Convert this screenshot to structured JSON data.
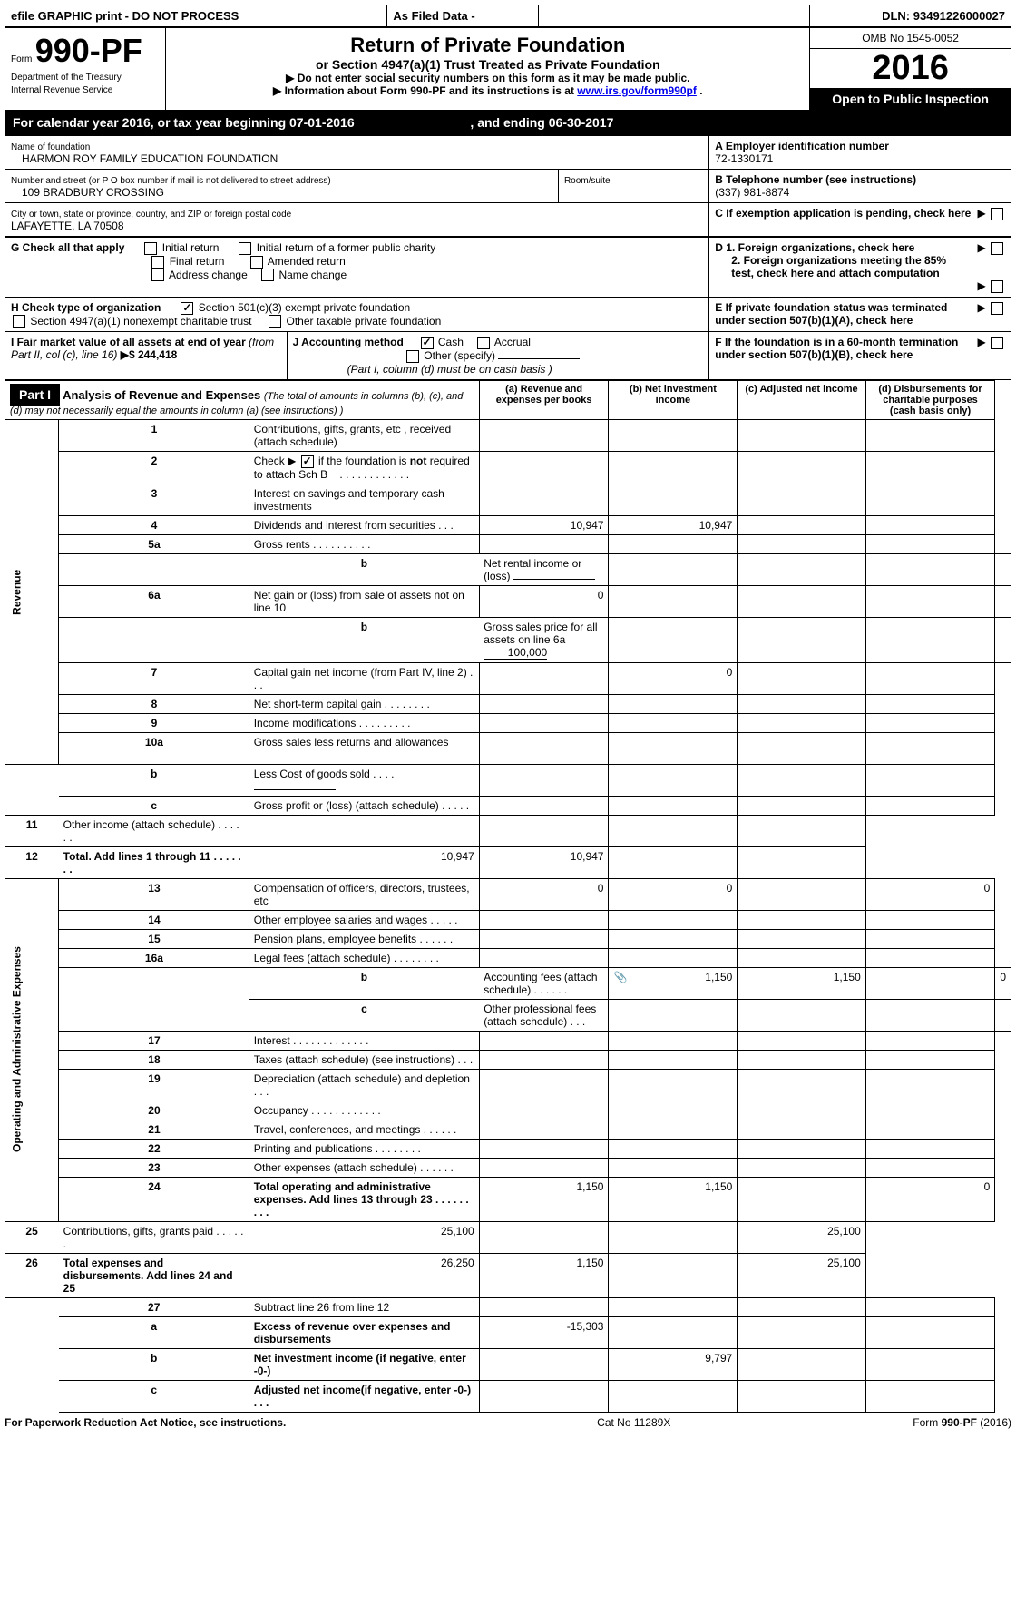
{
  "top_bar": {
    "efile": "efile GRAPHIC print - DO NOT PROCESS",
    "asfiled": "As Filed Data -",
    "dln_label": "DLN:",
    "dln": "93491226000027"
  },
  "form_header": {
    "form_label": "Form",
    "form_number": "990-PF",
    "dept": "Department of the Treasury",
    "irs": "Internal Revenue Service",
    "title": "Return of Private Foundation",
    "subtitle": "or Section 4947(a)(1) Trust Treated as Private Foundation",
    "instr1": "▶ Do not enter social security numbers on this form as it may be made public.",
    "instr2_prefix": "▶ Information about Form 990-PF and its instructions is at ",
    "instr2_link": "www.irs.gov/form990pf",
    "instr2_suffix": ".",
    "omb": "OMB No 1545-0052",
    "year": "2016",
    "open_public": "Open to Public Inspection"
  },
  "calendar": {
    "text1": "For calendar year 2016, or tax year beginning ",
    "begin": "07-01-2016",
    "text2": ", and ending ",
    "end": "06-30-2017"
  },
  "entity": {
    "name_label": "Name of foundation",
    "name": "HARMON ROY FAMILY EDUCATION FOUNDATION",
    "ein_label": "A Employer identification number",
    "ein": "72-1330171",
    "addr_label": "Number and street (or P O  box number if mail is not delivered to street address)",
    "addr": "109 BRADBURY CROSSING",
    "room_label": "Room/suite",
    "phone_label": "B Telephone number (see instructions)",
    "phone": "(337) 981-8874",
    "city_label": "City or town, state or province, country, and ZIP or foreign postal code",
    "city": "LAFAYETTE, LA  70508",
    "c_label": "C If exemption application is pending, check here"
  },
  "checks": {
    "g_label": "G Check all that apply",
    "g1": "Initial return",
    "g2": "Initial return of a former public charity",
    "g3": "Final return",
    "g4": "Amended return",
    "g5": "Address change",
    "g6": "Name change",
    "h_label": "H Check type of organization",
    "h1": "Section 501(c)(3) exempt private foundation",
    "h2": "Section 4947(a)(1) nonexempt charitable trust",
    "h3": "Other taxable private foundation",
    "d1": "D 1. Foreign organizations, check here",
    "d2": "2. Foreign organizations meeting the 85% test, check here and attach computation",
    "e_label": "E  If private foundation status was terminated under section 507(b)(1)(A), check here",
    "i_label": "I Fair market value of all assets at end of year ",
    "i_detail": "(from Part II, col  (c), line 16)",
    "i_value": "▶$  244,418",
    "j_label": "J Accounting method",
    "j_cash": "Cash",
    "j_accrual": "Accrual",
    "j_other": "Other (specify)",
    "j_note": "(Part I, column (d) must be on cash basis )",
    "f_label": "F  If the foundation is in a 60-month termination under section 507(b)(1)(B), check here"
  },
  "part1": {
    "label": "Part I",
    "title": "Analysis of Revenue and Expenses ",
    "title_detail": "(The total of amounts in columns (b), (c), and (d) may not necessarily equal the amounts in column (a) (see instructions) )",
    "col_a": "(a)    Revenue and expenses per books",
    "col_b": "(b)   Net investment income",
    "col_c": "(c)   Adjusted net income",
    "col_d": "(d)   Disbursements for charitable purposes (cash basis only)",
    "rev_label": "Revenue",
    "exp_label": "Operating and Administrative Expenses"
  },
  "rows": [
    {
      "n": "1",
      "label": "Contributions, gifts, grants, etc , received (attach schedule)",
      "a": "",
      "b": "",
      "c": "",
      "d": ""
    },
    {
      "n": "2",
      "label": "Check ▶ ☑ if the foundation is not required to attach Sch  B",
      "a": "",
      "b": "",
      "c": "",
      "d": "",
      "special": "check"
    },
    {
      "n": "3",
      "label": "Interest on savings and temporary cash investments",
      "a": "",
      "b": "",
      "c": "",
      "d": ""
    },
    {
      "n": "4",
      "label": "Dividends and interest from securities   .   .   .",
      "a": "10,947",
      "b": "10,947",
      "c": "",
      "d": ""
    },
    {
      "n": "5a",
      "label": "Gross rents     .    .    .    .    .    .    .    .    .    .",
      "a": "",
      "b": "",
      "c": "",
      "d": ""
    },
    {
      "n": "b",
      "label": "Net rental income or (loss)",
      "a": "",
      "b": "",
      "c": "",
      "d": "",
      "inline": true
    },
    {
      "n": "6a",
      "label": "Net gain or (loss) from sale of assets not on line 10",
      "a": "0",
      "b": "",
      "c": "",
      "d": ""
    },
    {
      "n": "b",
      "label": "Gross sales price for all assets on line 6a",
      "a": "",
      "b": "",
      "c": "",
      "d": "",
      "val_inline": "100,000"
    },
    {
      "n": "7",
      "label": "Capital gain net income (from Part IV, line 2)   .   .   .",
      "a": "",
      "b": "0",
      "c": "",
      "d": ""
    },
    {
      "n": "8",
      "label": "Net short-term capital gain   .    .    .    .    .    .    .    .",
      "a": "",
      "b": "",
      "c": "",
      "d": ""
    },
    {
      "n": "9",
      "label": "Income modifications   .    .    .    .    .    .    .    .    .",
      "a": "",
      "b": "",
      "c": "",
      "d": ""
    },
    {
      "n": "10a",
      "label": "Gross sales less returns and allowances",
      "a": "",
      "b": "",
      "c": "",
      "d": "",
      "inline": true
    },
    {
      "n": "b",
      "label": "Less  Cost of goods sold    .    .    .    .",
      "a": "",
      "b": "",
      "c": "",
      "d": "",
      "inline": true
    },
    {
      "n": "c",
      "label": "Gross profit or (loss) (attach schedule)   .   .   .   .   .",
      "a": "",
      "b": "",
      "c": "",
      "d": ""
    },
    {
      "n": "11",
      "label": "Other income (attach schedule)     .    .    .    .    .    .",
      "a": "",
      "b": "",
      "c": "",
      "d": ""
    },
    {
      "n": "12",
      "label": "Total. Add lines 1 through 11    .    .    .    .    .    .    .",
      "a": "10,947",
      "b": "10,947",
      "c": "",
      "d": "",
      "bold": true
    },
    {
      "n": "13",
      "label": "Compensation of officers, directors, trustees, etc",
      "a": "0",
      "b": "0",
      "c": "",
      "d": "0"
    },
    {
      "n": "14",
      "label": "Other employee salaries and wages     .    .    .    .    .",
      "a": "",
      "b": "",
      "c": "",
      "d": ""
    },
    {
      "n": "15",
      "label": "Pension plans, employee benefits   .    .    .    .    .    .",
      "a": "",
      "b": "",
      "c": "",
      "d": ""
    },
    {
      "n": "16a",
      "label": "Legal fees (attach schedule) .    .    .    .    .    .    .    .",
      "a": "",
      "b": "",
      "c": "",
      "d": ""
    },
    {
      "n": "b",
      "label": "Accounting fees (attach schedule) .    .    .    .    .    .",
      "a": "1,150",
      "b": "1,150",
      "c": "",
      "d": "0",
      "icon": true
    },
    {
      "n": "c",
      "label": "Other professional fees (attach schedule)    .    .    .",
      "a": "",
      "b": "",
      "c": "",
      "d": ""
    },
    {
      "n": "17",
      "label": "Interest   .    .    .    .    .    .    .    .    .    .    .    .    .",
      "a": "",
      "b": "",
      "c": "",
      "d": ""
    },
    {
      "n": "18",
      "label": "Taxes (attach schedule) (see instructions)      .    .    .",
      "a": "",
      "b": "",
      "c": "",
      "d": ""
    },
    {
      "n": "19",
      "label": "Depreciation (attach schedule) and depletion    .   .   .",
      "a": "",
      "b": "",
      "c": "",
      "d": ""
    },
    {
      "n": "20",
      "label": "Occupancy    .    .    .    .    .    .    .    .    .    .    .    .",
      "a": "",
      "b": "",
      "c": "",
      "d": ""
    },
    {
      "n": "21",
      "label": "Travel, conferences, and meetings .    .    .    .    .    .",
      "a": "",
      "b": "",
      "c": "",
      "d": ""
    },
    {
      "n": "22",
      "label": "Printing and publications .    .    .    .    .    .    .    .",
      "a": "",
      "b": "",
      "c": "",
      "d": ""
    },
    {
      "n": "23",
      "label": "Other expenses (attach schedule) .    .    .    .    .    .",
      "a": "",
      "b": "",
      "c": "",
      "d": ""
    },
    {
      "n": "24",
      "label": "Total operating and administrative expenses. Add lines 13 through 23   .    .    .    .    .    .    .    .    .",
      "a": "1,150",
      "b": "1,150",
      "c": "",
      "d": "0",
      "bold": true
    },
    {
      "n": "25",
      "label": "Contributions, gifts, grants paid      .    .    .    .    .    .",
      "a": "25,100",
      "b": "",
      "c": "",
      "d": "25,100"
    },
    {
      "n": "26",
      "label": "Total expenses and disbursements. Add lines 24 and 25",
      "a": "26,250",
      "b": "1,150",
      "c": "",
      "d": "25,100",
      "bold": true
    },
    {
      "n": "27",
      "label": "Subtract line 26 from line 12",
      "a": "",
      "b": "",
      "c": "",
      "d": ""
    },
    {
      "n": "a",
      "label": "Excess of revenue over expenses and disbursements",
      "a": "-15,303",
      "b": "",
      "c": "",
      "d": "",
      "bold": true
    },
    {
      "n": "b",
      "label": "Net investment income (if negative, enter -0-)",
      "a": "",
      "b": "9,797",
      "c": "",
      "d": "",
      "bold": true
    },
    {
      "n": "c",
      "label": "Adjusted net income(if negative, enter -0-)   .   .   .",
      "a": "",
      "b": "",
      "c": "",
      "d": "",
      "bold": true
    }
  ],
  "footer": {
    "left": "For Paperwork Reduction Act Notice, see instructions.",
    "cat": "Cat  No  11289X",
    "right": "Form 990-PF (2016)"
  }
}
